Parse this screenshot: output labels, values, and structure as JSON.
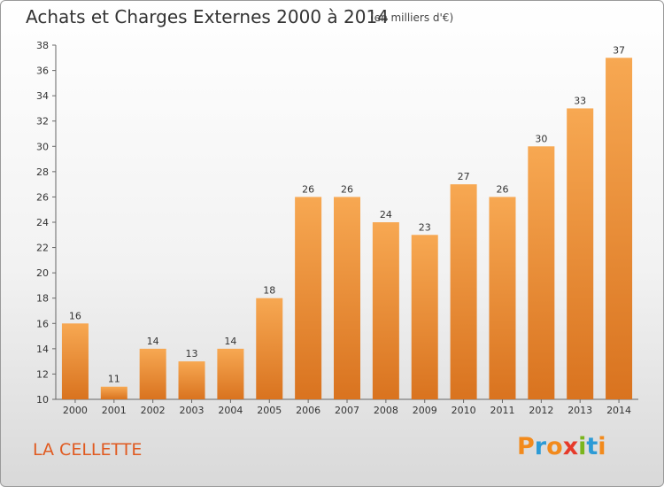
{
  "title": "Achats et Charges Externes 2000 à 2014",
  "subtitle": "(en milliers d'€)",
  "commune": "LA CELLETTE",
  "logo": {
    "letters": [
      "P",
      "r",
      "o",
      "x",
      "i",
      "t",
      "i"
    ],
    "colors": [
      "#f28a1c",
      "#2d9bd6",
      "#f28a1c",
      "#e63a2a",
      "#7ab51d",
      "#2d9bd6",
      "#f28a1c"
    ]
  },
  "colors": {
    "bar": "#f5a04a",
    "bar_dark": "#dd7a24",
    "commune": "#e05a20"
  },
  "chart_data": {
    "type": "bar",
    "categories": [
      "2000",
      "2001",
      "2002",
      "2003",
      "2004",
      "2005",
      "2006",
      "2007",
      "2008",
      "2009",
      "2010",
      "2011",
      "2012",
      "2013",
      "2014"
    ],
    "values": [
      16,
      11,
      14,
      13,
      14,
      18,
      26,
      26,
      24,
      23,
      27,
      26,
      30,
      33,
      37
    ],
    "ylim": [
      10,
      38
    ],
    "yticks": [
      10,
      12,
      14,
      16,
      18,
      20,
      22,
      24,
      26,
      28,
      30,
      32,
      34,
      36,
      38
    ],
    "grid": false
  }
}
